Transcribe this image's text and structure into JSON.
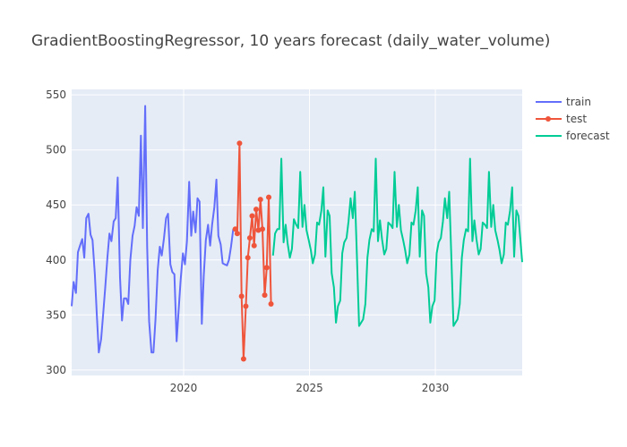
{
  "chart_data": {
    "type": "line",
    "title": "GradientBoostingRegressor, 10 years forecast (daily_water_volume)",
    "xlabel": "",
    "ylabel": "",
    "x_ticks": [
      "2020",
      "2025",
      "2030"
    ],
    "y_ticks": [
      "300",
      "350",
      "400",
      "450",
      "500",
      "550"
    ],
    "xlim": [
      2015.55,
      2033.45
    ],
    "ylim": [
      295,
      555
    ],
    "grid": true,
    "legend": "top-right",
    "colors": {
      "train": "#636efa",
      "test": "#ef553b",
      "forecast": "#00cc96",
      "plot_bg": "#e5ecf6"
    },
    "series": [
      {
        "name": "train",
        "mode": "lines",
        "x": [
          2015.55,
          2015.63,
          2015.72,
          2015.8,
          2015.88,
          2015.97,
          2016.05,
          2016.13,
          2016.22,
          2016.3,
          2016.38,
          2016.47,
          2016.55,
          2016.63,
          2016.72,
          2016.8,
          2016.88,
          2016.97,
          2017.05,
          2017.13,
          2017.22,
          2017.3,
          2017.38,
          2017.47,
          2017.55,
          2017.63,
          2017.72,
          2017.8,
          2017.88,
          2017.97,
          2018.05,
          2018.13,
          2018.22,
          2018.3,
          2018.38,
          2018.47,
          2018.55,
          2018.63,
          2018.72,
          2018.8,
          2018.88,
          2018.97,
          2019.05,
          2019.13,
          2019.22,
          2019.3,
          2019.38,
          2019.47,
          2019.55,
          2019.63,
          2019.72,
          2019.8,
          2019.88,
          2019.97,
          2020.05,
          2020.13,
          2020.22,
          2020.3,
          2020.38,
          2020.47,
          2020.55,
          2020.63,
          2020.72,
          2020.8,
          2020.88,
          2020.97,
          2021.05,
          2021.13,
          2021.22,
          2021.3,
          2021.38,
          2021.47,
          2021.55,
          2021.63,
          2021.72,
          2021.8,
          2021.88,
          2021.97
        ],
        "y": [
          358,
          380,
          370,
          407,
          413,
          419,
          402,
          438,
          442,
          423,
          418,
          387,
          350,
          316,
          328,
          350,
          374,
          402,
          424,
          417,
          435,
          438,
          475,
          384,
          345,
          365,
          365,
          360,
          400,
          422,
          431,
          448,
          440,
          513,
          429,
          540,
          412,
          344,
          316,
          316,
          346,
          391,
          412,
          404,
          420,
          438,
          442,
          396,
          389,
          387,
          326,
          354,
          382,
          406,
          396,
          417,
          471,
          422,
          444,
          425,
          456,
          453,
          342,
          386,
          418,
          432,
          413,
          432,
          448,
          473,
          422,
          414,
          397,
          396,
          395,
          400,
          412,
          428
        ]
      },
      {
        "name": "test",
        "mode": "lines+markers",
        "x": [
          2022.05,
          2022.13,
          2022.22,
          2022.3,
          2022.38,
          2022.47,
          2022.55,
          2022.63,
          2022.72,
          2022.8,
          2022.88,
          2022.97,
          2023.05,
          2023.13,
          2023.22,
          2023.3,
          2023.38,
          2023.47
        ],
        "y": [
          428,
          424,
          506,
          367,
          310,
          358,
          402,
          420,
          440,
          413,
          446,
          427,
          455,
          428,
          368,
          393,
          457,
          360
        ]
      },
      {
        "name": "forecast",
        "mode": "lines",
        "x": [
          2023.55,
          2023.63,
          2023.72,
          2023.8,
          2023.88,
          2023.97,
          2024.05,
          2024.13,
          2024.22,
          2024.3,
          2024.38,
          2024.47,
          2024.55,
          2024.63,
          2024.72,
          2024.8,
          2024.88,
          2024.97,
          2025.05,
          2025.13,
          2025.22,
          2025.3,
          2025.38,
          2025.47,
          2025.55,
          2025.63,
          2025.72,
          2025.8,
          2025.88,
          2025.97,
          2026.05,
          2026.13,
          2026.22,
          2026.3,
          2026.38,
          2026.47,
          2026.55,
          2026.63,
          2026.72,
          2026.8,
          2026.88,
          2026.97,
          2027.05,
          2027.13,
          2027.22,
          2027.3,
          2027.38,
          2027.47,
          2027.55,
          2027.63,
          2027.72,
          2027.8,
          2027.88,
          2027.97,
          2028.05,
          2028.13,
          2028.22,
          2028.3,
          2028.38,
          2028.47,
          2028.55,
          2028.63,
          2028.72,
          2028.8,
          2028.88,
          2028.97,
          2029.05,
          2029.13,
          2029.22,
          2029.3,
          2029.38,
          2029.47,
          2029.55,
          2029.63,
          2029.72,
          2029.8,
          2029.88,
          2029.97,
          2030.05,
          2030.13,
          2030.22,
          2030.3,
          2030.38,
          2030.47,
          2030.55,
          2030.63,
          2030.72,
          2030.8,
          2030.88,
          2030.97,
          2031.05,
          2031.13,
          2031.22,
          2031.3,
          2031.38,
          2031.47,
          2031.55,
          2031.63,
          2031.72,
          2031.8,
          2031.88,
          2031.97,
          2032.05,
          2032.13,
          2032.22,
          2032.3,
          2032.38,
          2032.47,
          2032.55,
          2032.63,
          2032.72,
          2032.8,
          2032.88,
          2032.97,
          2033.05,
          2033.13,
          2033.22,
          2033.3,
          2033.45
        ],
        "y": [
          404,
          424,
          428,
          428,
          492,
          416,
          432,
          415,
          402,
          410,
          437,
          432,
          429,
          480,
          430,
          450,
          427,
          418,
          409,
          397,
          405,
          434,
          432,
          445,
          466,
          403,
          445,
          440,
          388,
          375,
          343,
          358,
          363,
          406,
          416,
          420,
          435,
          456,
          438,
          462,
          405,
          340,
          343,
          346,
          360,
          402,
          418,
          428,
          426,
          492,
          417,
          436,
          419,
          405,
          410,
          434,
          432,
          429,
          480,
          430,
          450,
          427,
          418,
          409,
          397,
          405,
          434,
          432,
          445,
          466,
          403,
          445,
          440,
          388,
          375,
          343,
          358,
          363,
          406,
          416,
          420,
          435,
          456,
          438,
          462,
          405,
          340,
          343,
          346,
          360,
          402,
          418,
          428,
          426,
          492,
          417,
          436,
          419,
          405,
          410,
          434,
          432,
          429,
          480,
          430,
          450,
          427,
          418,
          409,
          397,
          405,
          434,
          432,
          445,
          466,
          403,
          445,
          440,
          398
        ]
      }
    ]
  }
}
